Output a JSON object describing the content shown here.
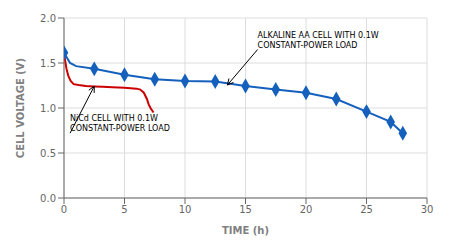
{
  "chart_data": {
    "type": "line",
    "xlabel": "TIME (h)",
    "ylabel": "CELL VOLTAGE (V)",
    "xlim": [
      0,
      30
    ],
    "ylim": [
      0,
      2.0
    ],
    "xticks": [
      0,
      5,
      10,
      15,
      20,
      25,
      30
    ],
    "yticks": [
      {
        "value": 0,
        "label": "0.0"
      },
      {
        "value": 0.5,
        "label": "0.5"
      },
      {
        "value": 1.0,
        "label": "1.0"
      },
      {
        "value": 1.5,
        "label": "1.5"
      },
      {
        "value": 2.0,
        "label": "2.0"
      }
    ],
    "grid": true,
    "series": [
      {
        "type": "line",
        "color": "#1560bd",
        "x": [
          0,
          0.5,
          1.0,
          2.5,
          5.0,
          7.5,
          10.0,
          12.5,
          15.0,
          17.5,
          20.0,
          22.5,
          25.0,
          27.0,
          28.0
        ],
        "values": [
          1.615,
          1.5,
          1.465,
          1.435,
          1.37,
          1.32,
          1.3,
          1.295,
          1.245,
          1.205,
          1.17,
          1.1,
          0.96,
          0.845,
          0.72
        ]
      },
      {
        "type": "scatter",
        "marker": "diamond",
        "color": "#1560bd",
        "x": [
          0,
          2.5,
          5.0,
          7.5,
          10.0,
          12.5,
          15.0,
          17.5,
          20.0,
          22.5,
          25.0,
          27.0,
          28.0
        ],
        "values": [
          1.615,
          1.435,
          1.37,
          1.32,
          1.3,
          1.295,
          1.245,
          1.205,
          1.17,
          1.1,
          0.96,
          0.845,
          0.72
        ]
      },
      {
        "type": "line",
        "color": "#cc0000",
        "x": [
          0,
          0.1,
          0.2,
          0.35,
          0.55,
          0.8,
          1.2,
          1.8,
          2.5,
          3.2,
          4.0,
          5.0,
          5.5,
          6.0,
          6.3,
          6.6,
          6.85,
          7.0,
          7.15,
          7.3,
          7.4
        ],
        "values": [
          1.61,
          1.52,
          1.44,
          1.36,
          1.3,
          1.265,
          1.255,
          1.245,
          1.24,
          1.235,
          1.23,
          1.225,
          1.22,
          1.215,
          1.205,
          1.17,
          1.1,
          1.04,
          1.0,
          0.97,
          0.95
        ]
      }
    ],
    "annotations": [
      {
        "text": "ALKALINE AA CELL WITH 0.1W\nCONSTANT-POWER LOAD",
        "x": 13.5,
        "y": 1.255,
        "text_x": 16.0,
        "text_y": 1.65
      },
      {
        "text": "NiCd CELL WITH 0.1W\nCONSTANT-POWER LOAD",
        "x": 2.5,
        "y": 1.242,
        "text_x": 0.5,
        "text_y": 0.72
      }
    ]
  }
}
